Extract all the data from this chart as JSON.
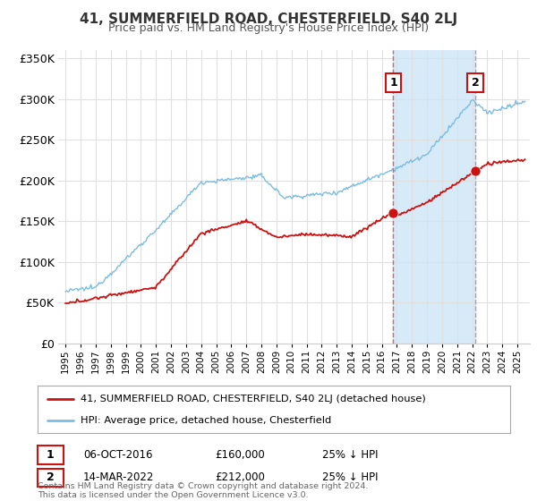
{
  "title": "41, SUMMERFIELD ROAD, CHESTERFIELD, S40 2LJ",
  "subtitle": "Price paid vs. HM Land Registry's House Price Index (HPI)",
  "ylim": [
    0,
    360000
  ],
  "yticks": [
    0,
    50000,
    100000,
    150000,
    200000,
    250000,
    300000,
    350000
  ],
  "ytick_labels": [
    "£0",
    "£50K",
    "£100K",
    "£150K",
    "£200K",
    "£250K",
    "£300K",
    "£350K"
  ],
  "hpi_color": "#7bbde0",
  "price_color": "#cc1111",
  "vline1_x": 2016.76,
  "vline2_x": 2022.2,
  "marker1_x": 2016.76,
  "marker1_y": 160000,
  "marker2_x": 2022.2,
  "marker2_y": 212000,
  "shade_color": "#d6eaf8",
  "legend_label_price": "41, SUMMERFIELD ROAD, CHESTERFIELD, S40 2LJ (detached house)",
  "legend_label_hpi": "HPI: Average price, detached house, Chesterfield",
  "table_rows": [
    {
      "num": "1",
      "date": "06-OCT-2016",
      "price": "£160,000",
      "note": "25% ↓ HPI"
    },
    {
      "num": "2",
      "date": "14-MAR-2022",
      "price": "£212,000",
      "note": "25% ↓ HPI"
    }
  ],
  "footer": "Contains HM Land Registry data © Crown copyright and database right 2024.\nThis data is licensed under the Open Government Licence v3.0.",
  "background_color": "#ffffff",
  "grid_color": "#e0e0e0",
  "xlim_left": 1994.5,
  "xlim_right": 2025.8
}
